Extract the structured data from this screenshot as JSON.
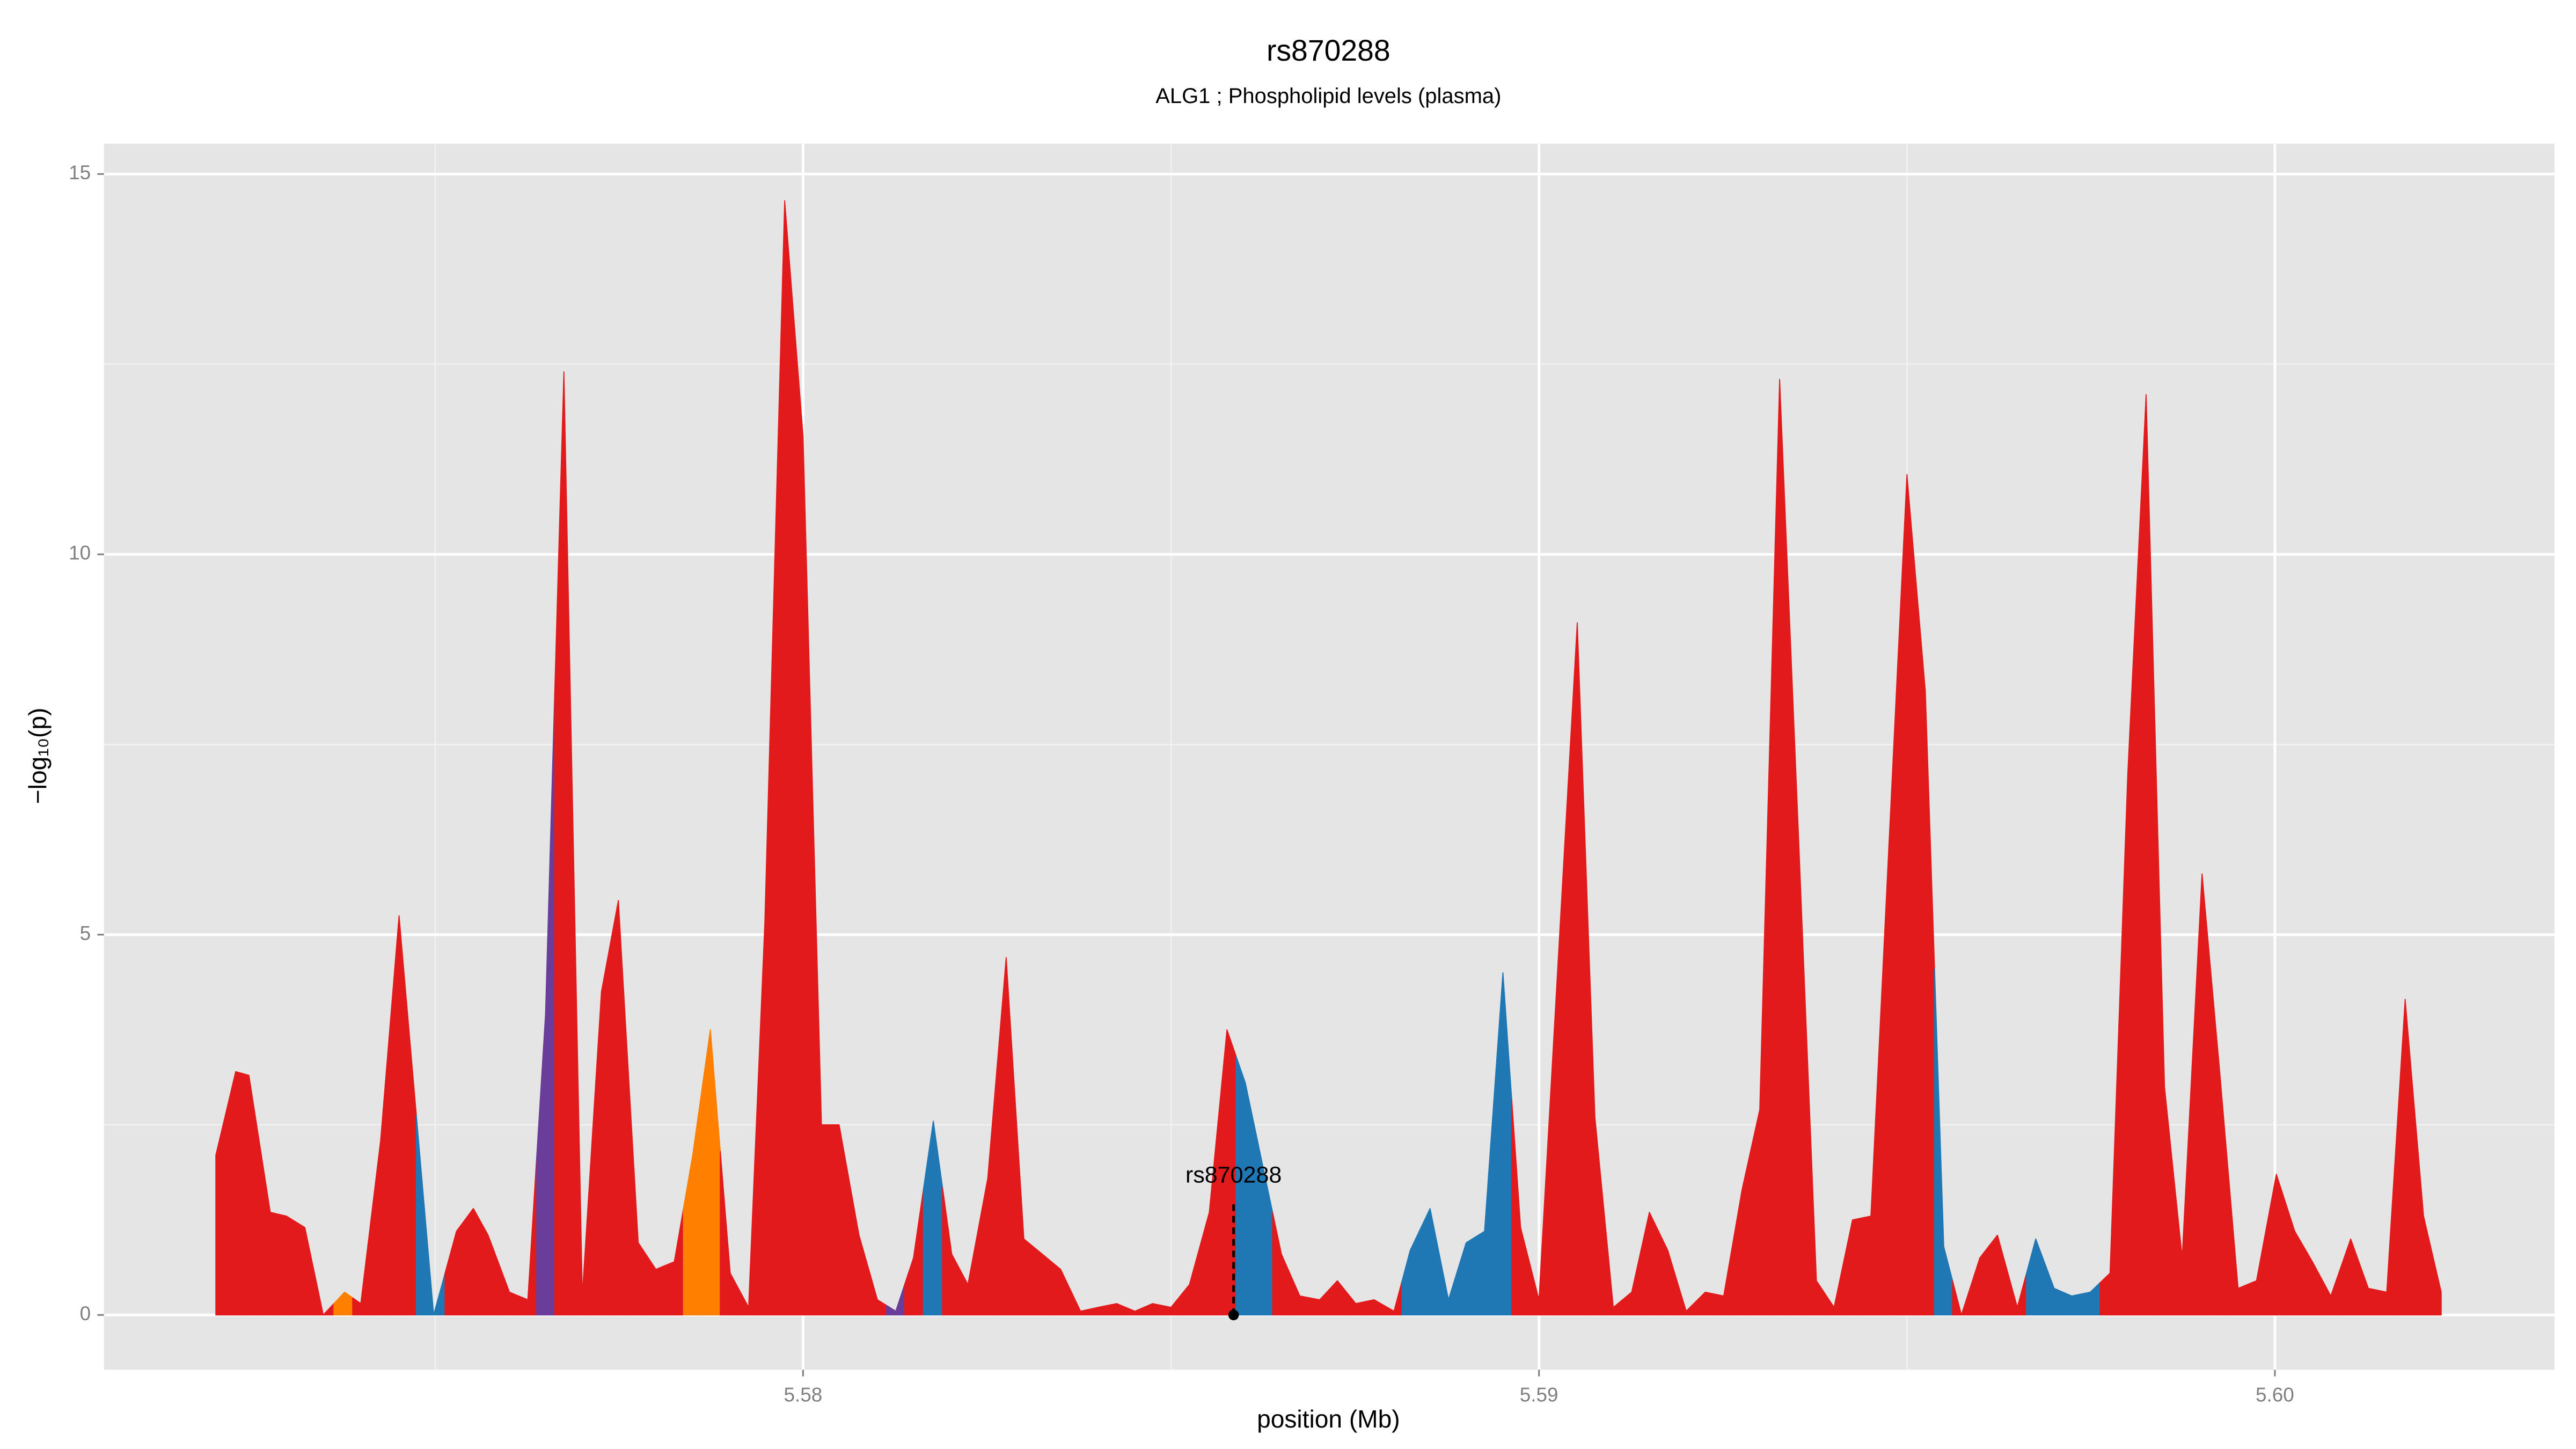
{
  "chart_data": {
    "type": "area",
    "title": "rs870288",
    "subtitle": "ALG1 ; Phospholipid levels (plasma)",
    "x_label": "position (Mb)",
    "y_label": "−log₁₀(p)",
    "xlim": [
      5.5705,
      5.6038
    ],
    "ylim": [
      -0.72,
      15.4
    ],
    "xticks": [
      {
        "value": 5.58,
        "label": "5.58"
      },
      {
        "value": 5.59,
        "label": "5.59"
      },
      {
        "value": 5.6,
        "label": "5.60"
      }
    ],
    "yticks": [
      0,
      5,
      10,
      15
    ],
    "grid": true,
    "annotation": {
      "text": "rs870288",
      "x": 5.58585
    },
    "series": [
      {
        "x": [
          5.57202,
          5.57229,
          5.57247,
          5.57276,
          5.57298,
          5.57323,
          5.57348,
          5.57377,
          5.57399,
          5.57426,
          5.57451,
          5.57498,
          5.57529,
          5.57552,
          5.57572,
          5.57601,
          5.57626,
          5.5765,
          5.57675,
          5.577,
          5.57726,
          5.57749,
          5.57776,
          5.578,
          5.57825,
          5.5785,
          5.57874,
          5.57901,
          5.57926,
          5.57948,
          5.57975,
          5.58,
          5.58025,
          5.58049,
          5.58076,
          5.58101,
          5.58126,
          5.5815,
          5.58177,
          5.58202,
          5.58224,
          5.58251,
          5.58276,
          5.583,
          5.58325,
          5.5835,
          5.58377,
          5.58401,
          5.58426,
          5.58451,
          5.58475,
          5.585,
          5.58525,
          5.58552,
          5.58576,
          5.58601,
          5.58626,
          5.5865,
          5.58675,
          5.58702,
          5.58726,
          5.58751,
          5.58776,
          5.58803,
          5.58825,
          5.58852,
          5.58877,
          5.58901,
          5.58926,
          5.58951,
          5.58975,
          5.59,
          5.59052,
          5.59076,
          5.59101,
          5.59126,
          5.5915,
          5.59175,
          5.592,
          5.59226,
          5.59251,
          5.59276,
          5.593,
          5.59327,
          5.59352,
          5.59377,
          5.59401,
          5.59426,
          5.59451,
          5.595,
          5.59525,
          5.5955,
          5.59574,
          5.59599,
          5.59623,
          5.5965,
          5.59675,
          5.597,
          5.59724,
          5.59749,
          5.59776,
          5.598,
          5.59825,
          5.5985,
          5.59874,
          5.59901,
          5.59925,
          5.5995,
          5.59975,
          5.60002,
          5.60027,
          5.60051,
          5.60076,
          5.60103,
          5.60127,
          5.60152,
          5.60177,
          5.60202,
          5.60226
        ],
        "values": [
          2.1,
          3.2,
          3.15,
          1.35,
          1.3,
          1.15,
          0,
          0.3,
          0.15,
          2.3,
          5.25,
          0,
          1.1,
          1.4,
          1.05,
          0.3,
          0.2,
          3.95,
          12.4,
          0.25,
          4.25,
          5.45,
          0.95,
          0.6,
          0.7,
          2.1,
          3.75,
          0.55,
          0.1,
          5.15,
          14.65,
          11.55,
          2.5,
          2.5,
          1.05,
          0.2,
          0.05,
          0.75,
          2.55,
          0.8,
          0.4,
          1.8,
          4.7,
          1.0,
          0.8,
          0.6,
          0.05,
          0.1,
          0.15,
          0.05,
          0.15,
          0.1,
          0.4,
          1.35,
          3.75,
          3.05,
          1.9,
          0.8,
          0.25,
          0.2,
          0.45,
          0.15,
          0.2,
          0.05,
          0.85,
          1.4,
          0.2,
          0.95,
          1.1,
          4.5,
          1.15,
          0.2,
          9.1,
          2.6,
          0.1,
          0.3,
          1.35,
          0.85,
          0.05,
          0.3,
          0.25,
          1.65,
          2.7,
          12.3,
          6.45,
          0.45,
          0.1,
          1.25,
          1.3,
          11.05,
          8.2,
          0.9,
          0,
          0.75,
          1.05,
          0.1,
          1.0,
          0.35,
          0.25,
          0.3,
          0.55,
          7.1,
          12.1,
          3.0,
          0.75,
          5.8,
          3.2,
          0.35,
          0.45,
          1.85,
          1.1,
          0.7,
          0.25,
          1.0,
          0.35,
          0.3,
          4.15,
          1.3,
          0.3
        ],
        "colors": [
          "#e31a1c",
          "#e31a1c",
          "#e31a1c",
          "#e31a1c",
          "#e31a1c",
          "#e31a1c",
          "#e31a1c",
          "#ff7f00",
          "#e31a1c",
          "#e31a1c",
          "#e31a1c",
          "#1f78b4",
          "#e31a1c",
          "#e31a1c",
          "#e31a1c",
          "#e31a1c",
          "#e31a1c",
          "#6a3d9a",
          "#e31a1c",
          "#e31a1c",
          "#e31a1c",
          "#e31a1c",
          "#e31a1c",
          "#e31a1c",
          "#e31a1c",
          "#ff7f00",
          "#ff7f00",
          "#e31a1c",
          "#e31a1c",
          "#e31a1c",
          "#e31a1c",
          "#e31a1c",
          "#e31a1c",
          "#e31a1c",
          "#e31a1c",
          "#e31a1c",
          "#6a3d9a",
          "#e31a1c",
          "#1f78b4",
          "#e31a1c",
          "#e31a1c",
          "#e31a1c",
          "#e31a1c",
          "#e31a1c",
          "#e31a1c",
          "#e31a1c",
          "#e31a1c",
          "#e31a1c",
          "#e31a1c",
          "#e31a1c",
          "#e31a1c",
          "#e31a1c",
          "#e31a1c",
          "#e31a1c",
          "#e31a1c",
          "#1f78b4",
          "#1f78b4",
          "#e31a1c",
          "#e31a1c",
          "#e31a1c",
          "#e31a1c",
          "#e31a1c",
          "#e31a1c",
          "#e31a1c",
          "#1f78b4",
          "#1f78b4",
          "#1f78b4",
          "#1f78b4",
          "#1f78b4",
          "#1f78b4",
          "#e31a1c",
          "#e31a1c",
          "#e31a1c",
          "#e31a1c",
          "#e31a1c",
          "#e31a1c",
          "#e31a1c",
          "#e31a1c",
          "#e31a1c",
          "#e31a1c",
          "#e31a1c",
          "#e31a1c",
          "#e31a1c",
          "#e31a1c",
          "#e31a1c",
          "#e31a1c",
          "#e31a1c",
          "#e31a1c",
          "#e31a1c",
          "#e31a1c",
          "#e31a1c",
          "#1f78b4",
          "#e31a1c",
          "#e31a1c",
          "#e31a1c",
          "#e31a1c",
          "#1f78b4",
          "#1f78b4",
          "#1f78b4",
          "#1f78b4",
          "#e31a1c",
          "#e31a1c",
          "#e31a1c",
          "#e31a1c",
          "#e31a1c",
          "#e31a1c",
          "#e31a1c",
          "#e31a1c",
          "#e31a1c",
          "#e31a1c",
          "#e31a1c",
          "#e31a1c",
          "#e31a1c",
          "#e31a1c",
          "#e31a1c",
          "#e31a1c",
          "#e31a1c",
          "#e31a1c",
          "#e31a1c"
        ]
      }
    ]
  }
}
